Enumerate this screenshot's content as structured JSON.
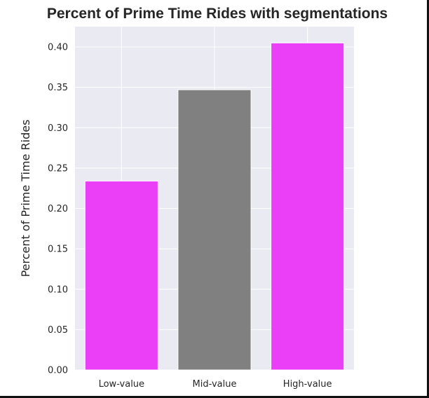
{
  "chart_data": {
    "type": "bar",
    "title": "Percent of Prime Time Rides with segmentations",
    "xlabel": "",
    "ylabel": "Percent of Prime Time Rides",
    "categories": [
      "Low-value",
      "Mid-value",
      "High-value"
    ],
    "values": [
      0.234,
      0.347,
      0.405
    ],
    "colors": [
      "#ea3ef7",
      "#808080",
      "#ea3ef7"
    ],
    "ylim": [
      0,
      0.42
    ],
    "yticks": [
      "0.00",
      "0.05",
      "0.10",
      "0.15",
      "0.20",
      "0.25",
      "0.30",
      "0.35",
      "0.40"
    ],
    "grid": true,
    "background": "#eaeaf2"
  }
}
